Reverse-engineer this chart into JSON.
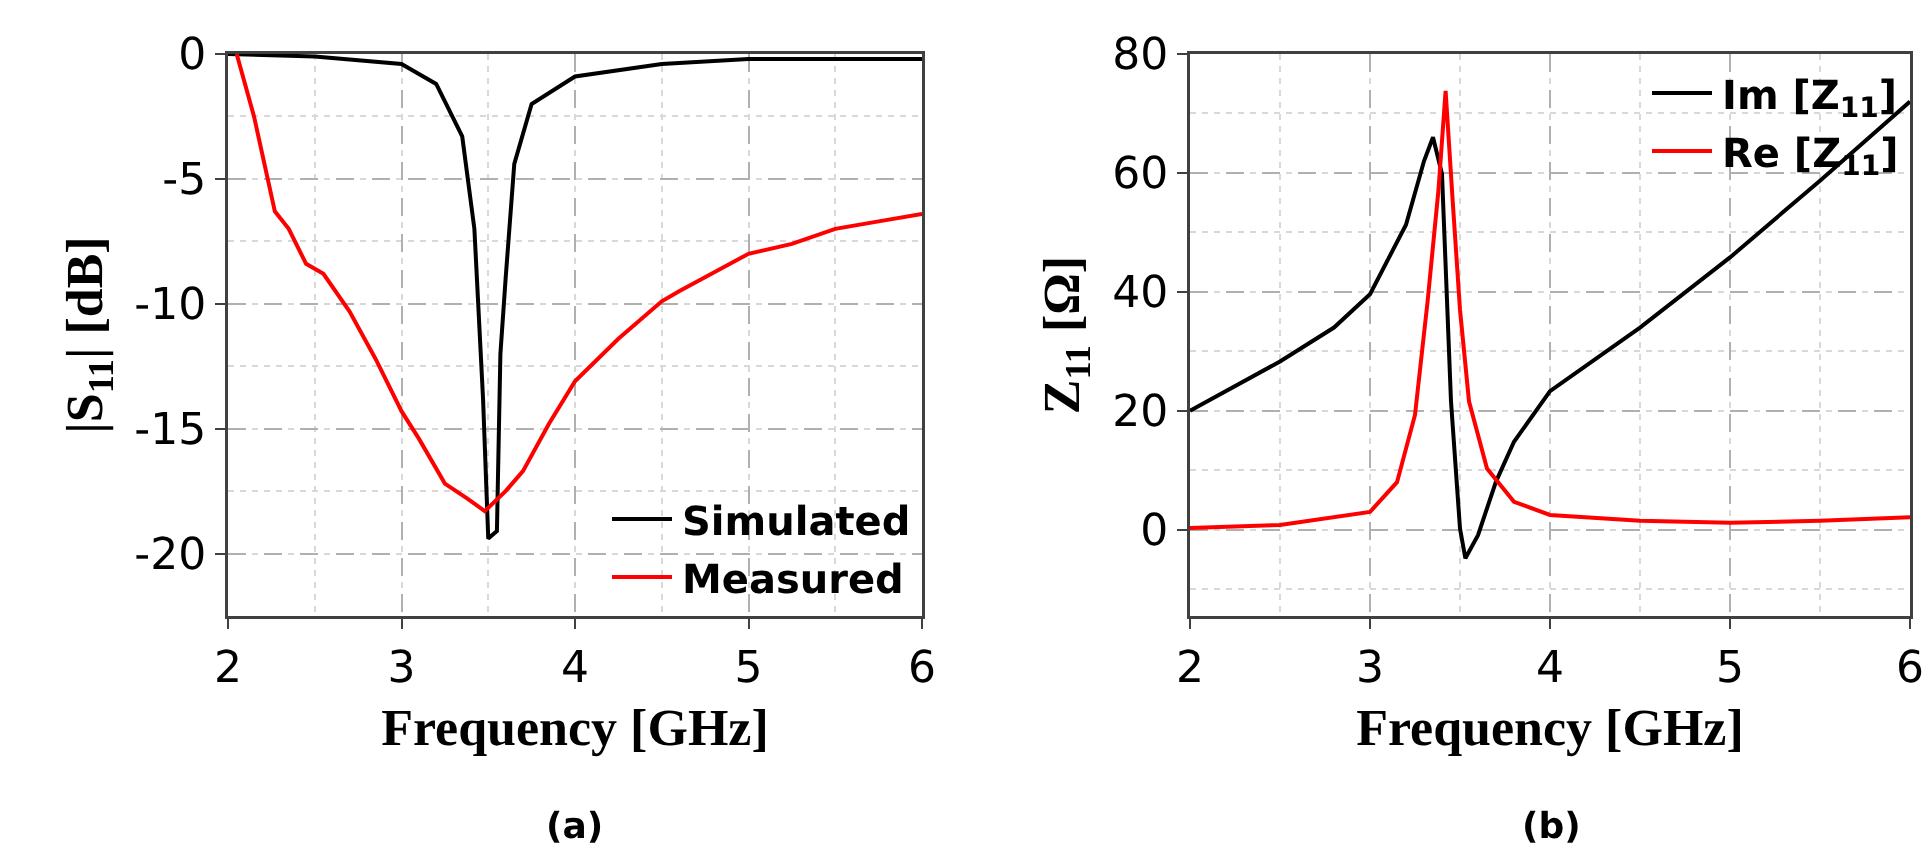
{
  "chart_data": [
    {
      "type": "line",
      "xlabel": "Frequency [GHz]",
      "ylabel": "|S$_{11}$| [dB]",
      "annotations": [
        "(a)"
      ],
      "xlim": [
        2,
        6
      ],
      "xticks": [
        2,
        3,
        4,
        5,
        6
      ],
      "ylim": [
        -22.5,
        0
      ],
      "yticks": [
        -20,
        -15,
        -10,
        -5,
        0
      ],
      "grid": true,
      "legend": "bottom right",
      "line_style": "solid",
      "series": [
        {
          "name": "Simulated",
          "color": "#000000",
          "x": [
            2,
            2.5,
            3,
            3.2,
            3.35,
            3.42,
            3.47,
            3.5,
            3.55,
            3.57,
            3.6,
            3.65,
            3.75,
            4,
            4.5,
            5,
            6
          ],
          "values": [
            0,
            -0.1,
            -0.4,
            -1.2,
            -3.3,
            -7,
            -13.8,
            -19.4,
            -19.1,
            -12,
            -9,
            -4.4,
            -2,
            -0.9,
            -0.4,
            -0.2,
            -0.2
          ]
        },
        {
          "name": "Measured",
          "color": "#ff0000",
          "x": [
            2.05,
            2.15,
            2.27,
            2.35,
            2.45,
            2.55,
            2.7,
            2.85,
            3,
            3.1,
            3.25,
            3.38,
            3.48,
            3.6,
            3.7,
            3.85,
            4,
            4.25,
            4.5,
            4.6,
            5,
            5.25,
            5.5,
            5.75,
            6
          ],
          "values": [
            0,
            -2.5,
            -6.3,
            -7,
            -8.4,
            -8.8,
            -10.3,
            -12.2,
            -14.3,
            -15.4,
            -17.2,
            -17.8,
            -18.3,
            -17.5,
            -16.7,
            -14.8,
            -13.1,
            -11.4,
            -9.9,
            -9.5,
            -8,
            -7.6,
            -7,
            -6.7,
            -6.4
          ]
        }
      ]
    },
    {
      "type": "line",
      "xlabel": "Frequency [GHz]",
      "ylabel": "Z$_{11}$ [Ω]",
      "annotations": [
        "(b)"
      ],
      "xlim": [
        2,
        6
      ],
      "xticks": [
        2,
        3,
        4,
        5,
        6
      ],
      "ylim": [
        -14.5,
        80
      ],
      "yticks": [
        0,
        20,
        40,
        60,
        80
      ],
      "grid": true,
      "legend": "top right",
      "line_style": "solid",
      "series": [
        {
          "name": "Im [Z$_{11}$]",
          "color": "#000000",
          "x": [
            2,
            2.5,
            2.8,
            3,
            3.2,
            3.3,
            3.35,
            3.4,
            3.45,
            3.5,
            3.53,
            3.6,
            3.7,
            3.8,
            4,
            4.5,
            5,
            5.5,
            6
          ],
          "values": [
            20,
            28.3,
            34,
            39.6,
            51.3,
            62,
            66,
            59.8,
            21.6,
            0.2,
            -4.8,
            -0.9,
            8.1,
            14.8,
            23.3,
            34,
            45.8,
            58.7,
            72
          ]
        },
        {
          "name": "Re [Z$_{11}$]",
          "color": "#ff0000",
          "x": [
            2,
            2.5,
            3,
            3.15,
            3.25,
            3.32,
            3.38,
            3.42,
            3.46,
            3.5,
            3.55,
            3.65,
            3.8,
            4,
            4.5,
            5,
            5.5,
            6
          ],
          "values": [
            0.3,
            0.8,
            3,
            8,
            19.3,
            38.4,
            57,
            73.8,
            55,
            37,
            21.6,
            10.3,
            4.7,
            2.5,
            1.5,
            1.2,
            1.5,
            2.1
          ]
        }
      ]
    }
  ]
}
